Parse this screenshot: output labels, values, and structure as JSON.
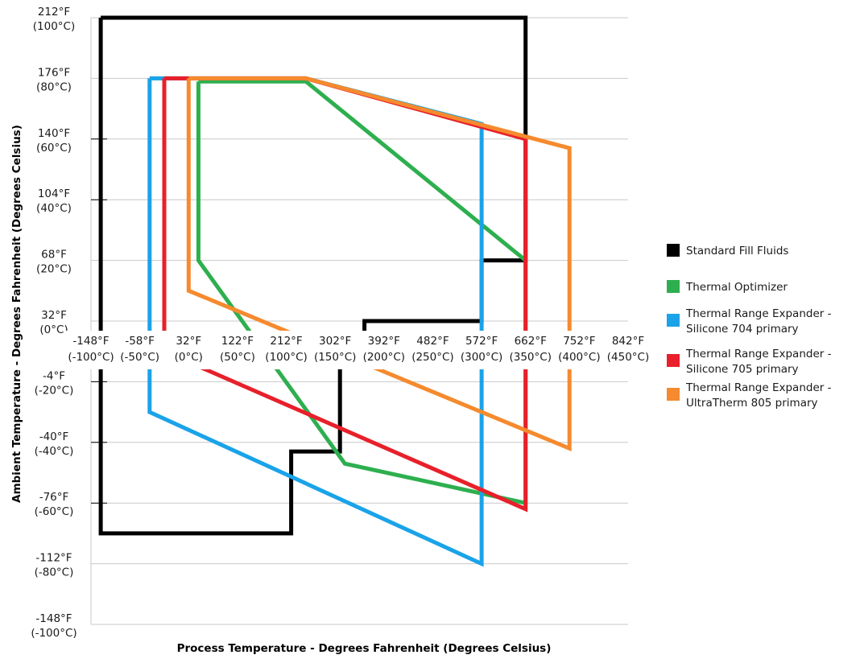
{
  "chart_data": {
    "type": "line",
    "title": "",
    "xlabel": "Process Temperature - Degrees Fahrenheit (Degrees Celsius)",
    "ylabel": "Ambient Temperature - Degrees Fahrenheit (Degrees Celsius)",
    "x_units": "°C",
    "y_units": "°C",
    "xlim": [
      -100,
      450
    ],
    "ylim": [
      -100,
      100
    ],
    "x_ticks": [
      {
        "value": -100,
        "f": "-148°F",
        "c": "(-100°C)"
      },
      {
        "value": -50,
        "f": "-58°F",
        "c": "(-50°C)"
      },
      {
        "value": 0,
        "f": "32°F",
        "c": "(0°C)"
      },
      {
        "value": 50,
        "f": "122°F",
        "c": "(50°C)"
      },
      {
        "value": 100,
        "f": "212°F",
        "c": "(100°C)"
      },
      {
        "value": 150,
        "f": "302°F",
        "c": "(150°C)"
      },
      {
        "value": 200,
        "f": "392°F",
        "c": "(200°C)"
      },
      {
        "value": 250,
        "f": "482°F",
        "c": "(250°C)"
      },
      {
        "value": 300,
        "f": "572°F",
        "c": "(300°C)"
      },
      {
        "value": 350,
        "f": "662°F",
        "c": "(350°C)"
      },
      {
        "value": 400,
        "f": "752°F",
        "c": "(400°C)"
      },
      {
        "value": 450,
        "f": "842°F",
        "c": "(450°C)"
      }
    ],
    "y_ticks": [
      {
        "value": 100,
        "f": "212°F",
        "c": "(100°C)"
      },
      {
        "value": 80,
        "f": "176°F",
        "c": "(80°C)"
      },
      {
        "value": 60,
        "f": "140°F",
        "c": "(60°C)"
      },
      {
        "value": 40,
        "f": "104°F",
        "c": "(40°C)"
      },
      {
        "value": 20,
        "f": "68°F",
        "c": "(20°C)"
      },
      {
        "value": 0,
        "f": "32°F",
        "c": "(0°C)"
      },
      {
        "value": -20,
        "f": "-4°F",
        "c": "(-20°C)"
      },
      {
        "value": -40,
        "f": "-40°F",
        "c": "(-40°C)"
      },
      {
        "value": -60,
        "f": "-76°F",
        "c": "(-60°C)"
      },
      {
        "value": -80,
        "f": "-112°F",
        "c": "(-80°C)"
      },
      {
        "value": -100,
        "f": "-148°F",
        "c": "(-100°C)"
      }
    ],
    "grid": "horizontal",
    "legend_position": "right",
    "series": [
      {
        "name": "Standard Fill Fluids",
        "color": "#000000",
        "points": [
          [
            -90,
            100
          ],
          [
            -90,
            -70
          ],
          [
            105,
            -70
          ],
          [
            105,
            -43
          ],
          [
            155,
            -43
          ],
          [
            155,
            -15
          ],
          [
            180,
            -15
          ],
          [
            180,
            0
          ],
          [
            300,
            0
          ],
          [
            300,
            20
          ],
          [
            345,
            20
          ],
          [
            345,
            100
          ],
          [
            -90,
            100
          ]
        ]
      },
      {
        "name": "Thermal Optimizer",
        "color": "#2eaf4f",
        "points": [
          [
            10,
            79
          ],
          [
            10,
            20
          ],
          [
            160,
            -47
          ],
          [
            345,
            -60
          ],
          [
            345,
            20
          ],
          [
            120,
            79
          ],
          [
            10,
            79
          ]
        ]
      },
      {
        "name": "Thermal Range Expander - Silicone 704 primary",
        "color": "#1aa3e8",
        "points": [
          [
            -40,
            80
          ],
          [
            -40,
            -30
          ],
          [
            300,
            -80
          ],
          [
            300,
            65
          ],
          [
            120,
            80
          ],
          [
            -40,
            80
          ]
        ]
      },
      {
        "name": "Thermal Range Expander - Silicone 705 primary",
        "color": "#e8202a",
        "points": [
          [
            -25,
            80
          ],
          [
            -25,
            -10
          ],
          [
            345,
            -62
          ],
          [
            345,
            60
          ],
          [
            120,
            80
          ],
          [
            -25,
            80
          ]
        ]
      },
      {
        "name": "Thermal Range Expander - UltraTherm 805 primary",
        "color": "#f58a2e",
        "points": [
          [
            0,
            80
          ],
          [
            0,
            10
          ],
          [
            390,
            -42
          ],
          [
            390,
            57
          ],
          [
            120,
            80
          ],
          [
            0,
            80
          ]
        ]
      }
    ]
  }
}
